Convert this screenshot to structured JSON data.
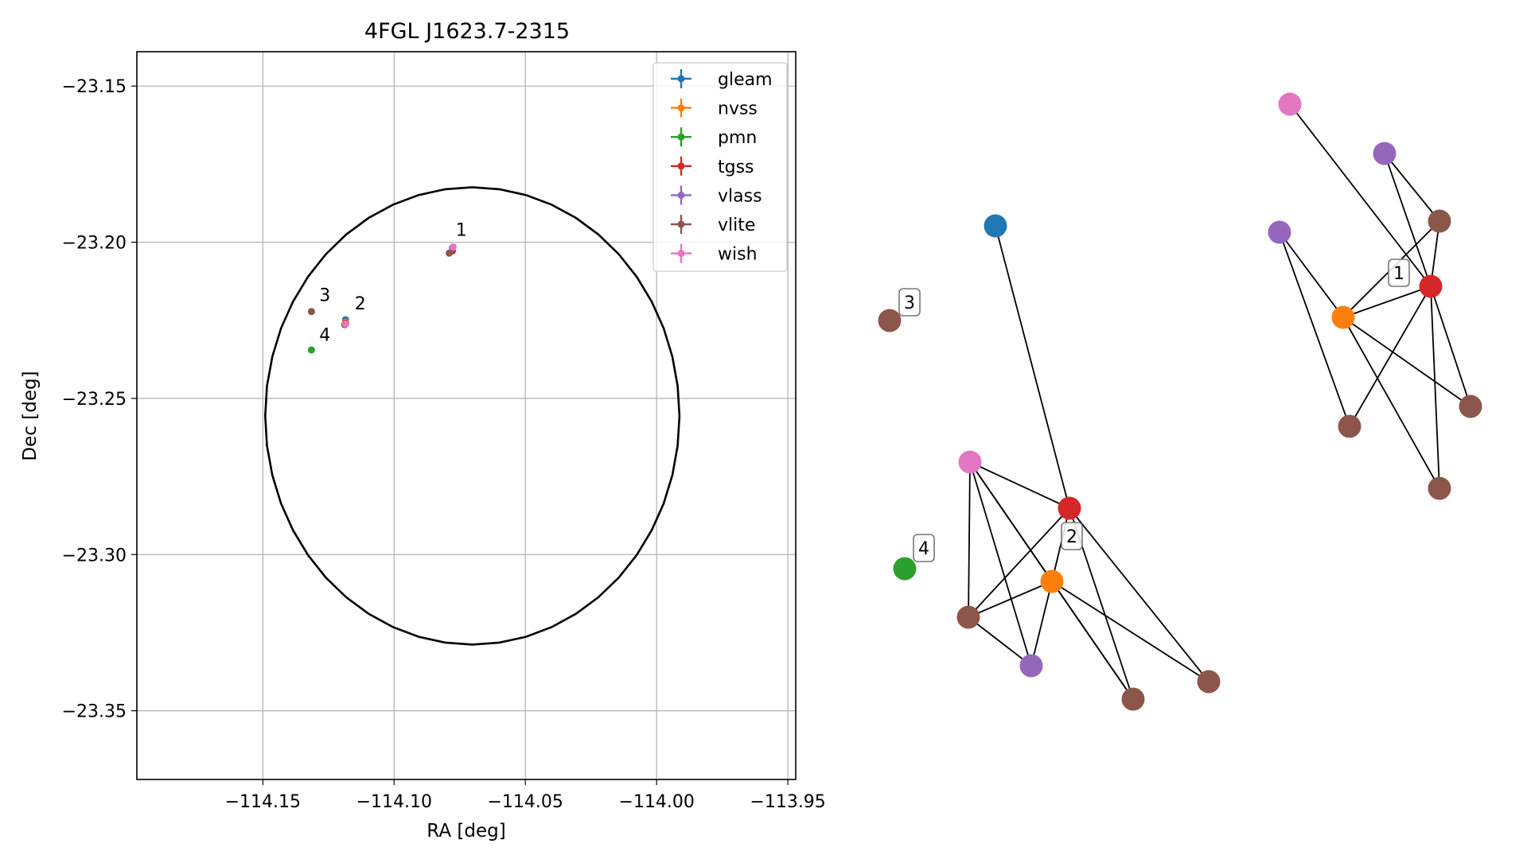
{
  "chart_data": [
    {
      "type": "scatter",
      "title": "4FGL J1623.7-2315",
      "xlabel": "RA [deg]",
      "ylabel": "Dec [deg]",
      "xlim": [
        -114.198,
        -113.947
      ],
      "ylim": [
        -23.372,
        -23.139
      ],
      "xticks": [
        -114.15,
        -114.1,
        -114.05,
        -114.0,
        -113.95
      ],
      "xtick_labels": [
        "−114.15",
        "−114.10",
        "−114.05",
        "−114.00",
        "−113.95"
      ],
      "yticks": [
        -23.15,
        -23.2,
        -23.25,
        -23.3,
        -23.35
      ],
      "ytick_labels": [
        "−23.15",
        "−23.20",
        "−23.25",
        "−23.30",
        "−23.35"
      ],
      "grid": true,
      "legend_position": "top-right",
      "series": [
        {
          "name": "gleam",
          "color": "#1f77b4",
          "points": [
            [
              -114.1185,
              -23.2248
            ]
          ]
        },
        {
          "name": "nvss",
          "color": "#ff7f0e",
          "points": [
            [
              -114.1185,
              -23.2256
            ]
          ]
        },
        {
          "name": "pmn",
          "color": "#2ca02c",
          "points": [
            [
              -114.1315,
              -23.2345
            ]
          ]
        },
        {
          "name": "tgss",
          "color": "#d62728",
          "points": [
            [
              -114.0778,
              -23.2028
            ],
            [
              -114.1185,
              -23.226
            ]
          ]
        },
        {
          "name": "vlass",
          "color": "#9467bd",
          "points": [
            [
              -114.0778,
              -23.2018
            ],
            [
              -114.1185,
              -23.2262
            ]
          ]
        },
        {
          "name": "vlite",
          "color": "#8c564b",
          "points": [
            [
              -114.1315,
              -23.2222
            ],
            [
              -114.079,
              -23.2035
            ],
            [
              -114.1188,
              -23.2264
            ]
          ]
        },
        {
          "name": "wish",
          "color": "#e377c2",
          "points": [
            [
              -114.0775,
              -23.2015
            ],
            [
              -114.1185,
              -23.2262
            ]
          ]
        }
      ],
      "ellipse": {
        "color": "#000000",
        "center": [
          -114.0702,
          -23.2556
        ],
        "semi_axis_ra": 0.0789,
        "semi_axis_dec": 0.0732
      },
      "annotations": [
        {
          "text": "1",
          "x": -114.0765,
          "y": -23.198
        },
        {
          "text": "2",
          "x": -114.115,
          "y": -23.2215
        },
        {
          "text": "3",
          "x": -114.1285,
          "y": -23.2188
        },
        {
          "text": "4",
          "x": -114.1285,
          "y": -23.2315
        }
      ]
    },
    {
      "type": "network",
      "nodes": [
        {
          "id": "g2a",
          "color": "#1f77b4"
        },
        {
          "id": "t2",
          "color": "#d62728"
        },
        {
          "id": "n2",
          "color": "#ff7f0e"
        },
        {
          "id": "w2",
          "color": "#e377c2"
        },
        {
          "id": "v2",
          "color": "#9467bd"
        },
        {
          "id": "b2a",
          "color": "#8c564b"
        },
        {
          "id": "b2b",
          "color": "#8c564b"
        },
        {
          "id": "b2c",
          "color": "#8c564b"
        },
        {
          "id": "b3",
          "color": "#8c564b"
        },
        {
          "id": "p4",
          "color": "#2ca02c"
        },
        {
          "id": "w1",
          "color": "#e377c2"
        },
        {
          "id": "v1a",
          "color": "#9467bd"
        },
        {
          "id": "v1b",
          "color": "#9467bd"
        },
        {
          "id": "b1a",
          "color": "#8c564b"
        },
        {
          "id": "t1",
          "color": "#d62728"
        },
        {
          "id": "n1",
          "color": "#ff7f0e"
        },
        {
          "id": "b1b",
          "color": "#8c564b"
        },
        {
          "id": "b1c",
          "color": "#8c564b"
        },
        {
          "id": "b1d",
          "color": "#8c564b"
        }
      ],
      "edges": [
        [
          "g2a",
          "t2"
        ],
        [
          "w2",
          "t2"
        ],
        [
          "w2",
          "n2"
        ],
        [
          "w2",
          "v2"
        ],
        [
          "w2",
          "b2a"
        ],
        [
          "w2",
          "b2b"
        ],
        [
          "t2",
          "n2"
        ],
        [
          "t2",
          "b2a"
        ],
        [
          "t2",
          "b2b"
        ],
        [
          "t2",
          "b2c"
        ],
        [
          "n2",
          "v2"
        ],
        [
          "n2",
          "b2a"
        ],
        [
          "n2",
          "b2b"
        ],
        [
          "n2",
          "b2c"
        ],
        [
          "b2a",
          "v2"
        ],
        [
          "w1",
          "t1"
        ],
        [
          "v1a",
          "t1"
        ],
        [
          "v1a",
          "b1a"
        ],
        [
          "b1a",
          "t1"
        ],
        [
          "b1a",
          "n1"
        ],
        [
          "v1b",
          "n1"
        ],
        [
          "v1b",
          "b1b"
        ],
        [
          "t1",
          "n1"
        ],
        [
          "t1",
          "b1b"
        ],
        [
          "t1",
          "b1c"
        ],
        [
          "t1",
          "b1d"
        ],
        [
          "n1",
          "b1c"
        ],
        [
          "n1",
          "b1d"
        ]
      ],
      "labels": [
        {
          "text": "1"
        },
        {
          "text": "2"
        },
        {
          "text": "3"
        },
        {
          "text": "4"
        }
      ]
    }
  ]
}
